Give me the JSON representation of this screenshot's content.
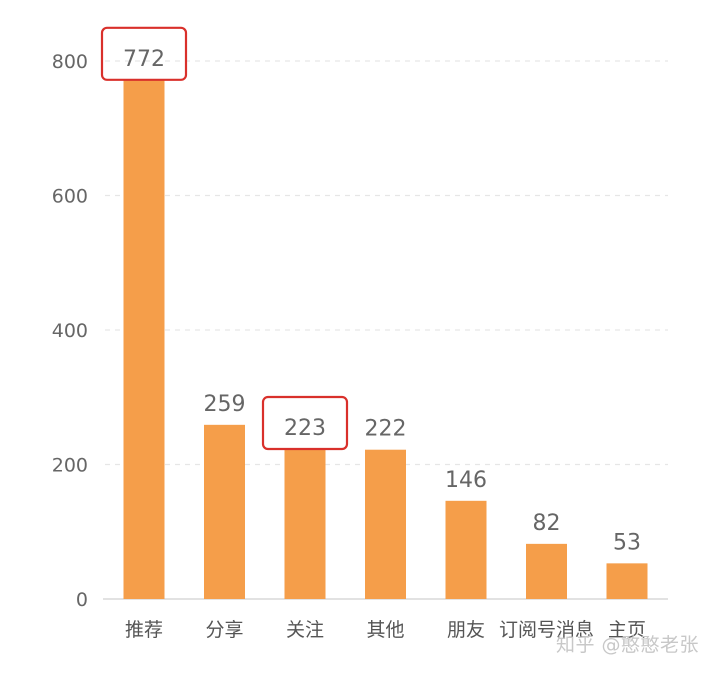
{
  "chart_data": {
    "type": "bar",
    "categories": [
      "推荐",
      "分享",
      "关注",
      "其他",
      "朋友",
      "订阅号消息",
      "主页"
    ],
    "values": [
      772,
      259,
      223,
      222,
      146,
      82,
      53
    ],
    "data_labels": [
      "772",
      "259",
      "223",
      "222",
      "146",
      "82",
      "53"
    ],
    "title": "",
    "xlabel": "",
    "ylabel": "",
    "ylim": [
      0,
      800
    ],
    "yticks": [
      0,
      200,
      400,
      600,
      800
    ],
    "ytick_labels": [
      "0",
      "200",
      "400",
      "600",
      "800"
    ],
    "grid": "horizontal dashed",
    "legend": "none",
    "highlighted_categories": [
      "推荐",
      "关注"
    ],
    "bar_color": "#F59E4A",
    "highlight_box_color": "#D9302B",
    "axis_text_color": "#666666",
    "data_label_color": "#666666",
    "grid_color": "#E6E6E6"
  },
  "watermark": {
    "text": "知乎 @憨憨老张"
  }
}
